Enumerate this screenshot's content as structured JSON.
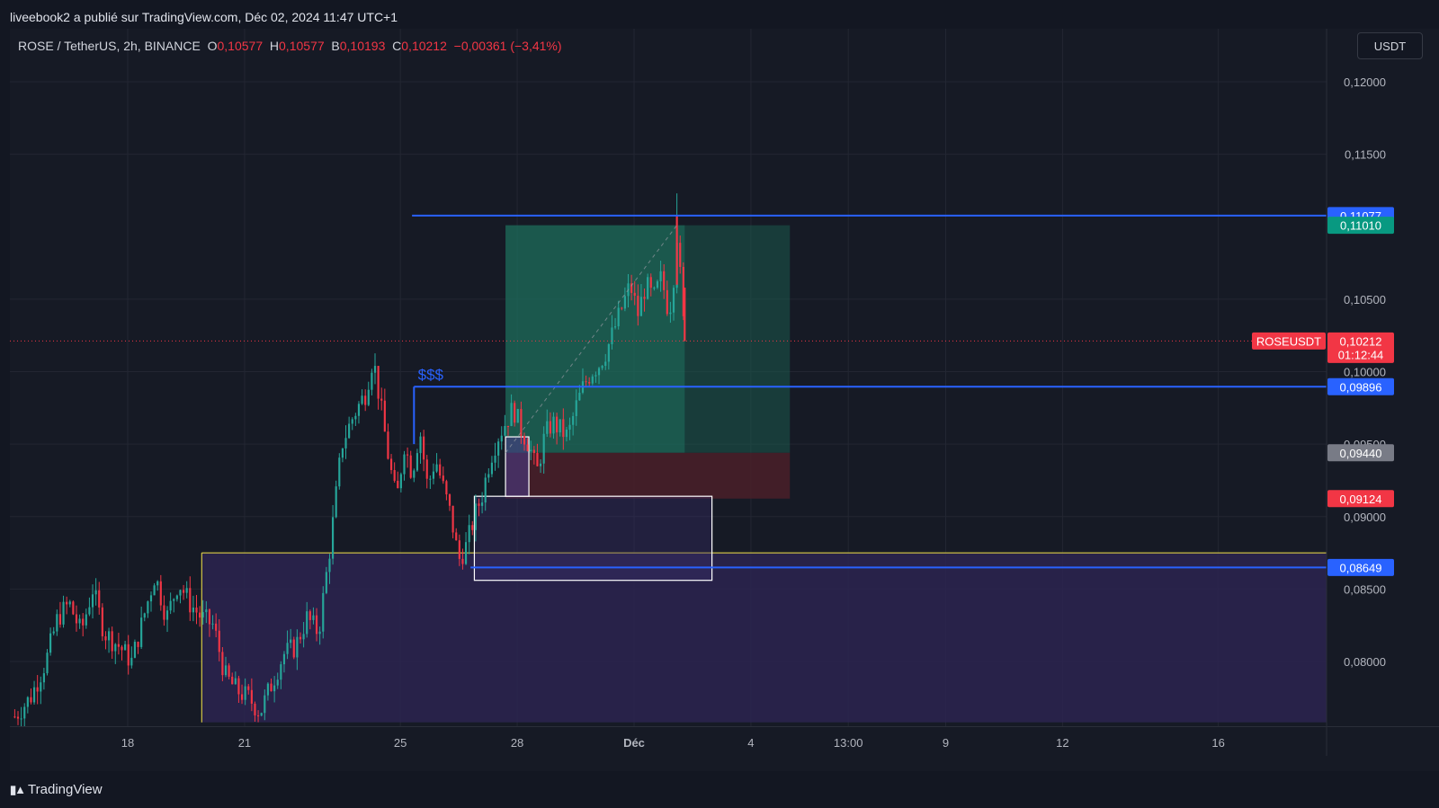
{
  "header": {
    "publisher_line": "liveebook2 a publié sur TradingView.com, Déc 02, 2024 11:47 UTC+1"
  },
  "legend": {
    "symbol": "ROSE / TetherUS, 2h, BINANCE",
    "o_label": "O",
    "o_value": "0,10577",
    "h_label": "H",
    "h_value": "0,10577",
    "l_label": "B",
    "l_value": "0,10193",
    "c_label": "C",
    "c_value": "0,10212",
    "change": "−0,00361 (−3,41%)"
  },
  "currency_button": "USDT",
  "footer": {
    "brand": "TradingView"
  },
  "colors": {
    "up": "#26a69a",
    "down": "#f23645",
    "blue_line": "#2962ff",
    "long_zone": "#1c5a4d",
    "short_zone": "#4a2029",
    "purple_zone": "#2b2450",
    "yellow": "#f5e447"
  },
  "chart_data": {
    "type": "candlestick",
    "symbol": "ROSEUSDT",
    "timeframe": "2h",
    "ylim": [
      0.0758,
      0.1232
    ],
    "y_ticks": [
      {
        "value": 0.12,
        "label": "0,12000"
      },
      {
        "value": 0.115,
        "label": "0,11500"
      },
      {
        "value": 0.105,
        "label": "0,10500"
      },
      {
        "value": 0.1,
        "label": "0,10000"
      },
      {
        "value": 0.095,
        "label": "0,09500"
      },
      {
        "value": 0.09,
        "label": "0,09000"
      },
      {
        "value": 0.085,
        "label": "0,08500"
      },
      {
        "value": 0.08,
        "label": "0,08000"
      }
    ],
    "x_ticks": [
      {
        "day": 18,
        "label": "18"
      },
      {
        "day": 21,
        "label": "21"
      },
      {
        "day": 25,
        "label": "25"
      },
      {
        "day": 28,
        "label": "28"
      },
      {
        "day": 31,
        "label": "Déc",
        "bold": true
      },
      {
        "day": 34,
        "label": "4"
      },
      {
        "day": 36.5,
        "label": "13:00"
      },
      {
        "day": 39,
        "label": "9"
      },
      {
        "day": 42,
        "label": "12"
      },
      {
        "day": 46,
        "label": "16"
      }
    ],
    "x_scale": {
      "day_ref": 18,
      "days_visible_from": 15.1,
      "days_visible_to": 48.8
    },
    "path_points": [
      [
        15.1,
        0.0762
      ],
      [
        15.5,
        0.0775
      ],
      [
        15.9,
        0.08
      ],
      [
        16.2,
        0.083
      ],
      [
        16.5,
        0.084
      ],
      [
        16.8,
        0.082
      ],
      [
        17.1,
        0.085
      ],
      [
        17.4,
        0.082
      ],
      [
        17.8,
        0.081
      ],
      [
        18.1,
        0.08
      ],
      [
        18.4,
        0.083
      ],
      [
        18.7,
        0.086
      ],
      [
        19.0,
        0.083
      ],
      [
        19.3,
        0.0855
      ],
      [
        19.6,
        0.084
      ],
      [
        19.9,
        0.083
      ],
      [
        20.2,
        0.0825
      ],
      [
        20.5,
        0.079
      ],
      [
        20.8,
        0.078
      ],
      [
        21.1,
        0.0775
      ],
      [
        21.4,
        0.0765
      ],
      [
        21.7,
        0.0785
      ],
      [
        22.0,
        0.0805
      ],
      [
        22.3,
        0.081
      ],
      [
        22.6,
        0.083
      ],
      [
        22.9,
        0.082
      ],
      [
        23.2,
        0.088
      ],
      [
        23.5,
        0.095
      ],
      [
        23.8,
        0.097
      ],
      [
        24.1,
        0.0985
      ],
      [
        24.3,
        0.101
      ],
      [
        24.5,
        0.0975
      ],
      [
        24.7,
        0.094
      ],
      [
        24.9,
        0.091
      ],
      [
        25.1,
        0.095
      ],
      [
        25.3,
        0.093
      ],
      [
        25.5,
        0.096
      ],
      [
        25.7,
        0.092
      ],
      [
        25.9,
        0.094
      ],
      [
        26.1,
        0.092
      ],
      [
        26.3,
        0.09
      ],
      [
        26.5,
        0.087
      ],
      [
        26.7,
        0.088
      ],
      [
        26.9,
        0.09
      ],
      [
        27.1,
        0.0915
      ],
      [
        27.3,
        0.094
      ],
      [
        27.5,
        0.0955
      ],
      [
        27.7,
        0.0965
      ],
      [
        27.9,
        0.0975
      ],
      [
        28.1,
        0.096
      ],
      [
        28.3,
        0.095
      ],
      [
        28.5,
        0.093
      ],
      [
        28.7,
        0.0955
      ],
      [
        28.9,
        0.0965
      ],
      [
        29.1,
        0.096
      ],
      [
        29.3,
        0.0955
      ],
      [
        29.5,
        0.0975
      ],
      [
        29.7,
        0.099
      ],
      [
        29.9,
        0.1
      ],
      [
        30.1,
        0.1005
      ],
      [
        30.3,
        0.1015
      ],
      [
        30.5,
        0.103
      ],
      [
        30.7,
        0.1045
      ],
      [
        30.9,
        0.106
      ],
      [
        31.1,
        0.104
      ],
      [
        31.3,
        0.106
      ],
      [
        31.5,
        0.105
      ],
      [
        31.7,
        0.1065
      ],
      [
        31.9,
        0.104
      ],
      [
        32.0,
        0.106
      ],
      [
        32.1,
        0.1095
      ],
      [
        32.2,
        0.106
      ],
      [
        32.3,
        0.1021
      ]
    ],
    "levels": [
      {
        "name": "high-line",
        "value": 0.11077,
        "label": "0,11077",
        "color": "#2962ff"
      },
      {
        "name": "liquidity-line",
        "value": 0.09896,
        "label": "0,09896",
        "color": "#2962ff",
        "annotation": "$$$"
      },
      {
        "name": "low-line",
        "value": 0.08649,
        "label": "0,08649",
        "color": "#2962ff"
      }
    ],
    "price_labels": [
      {
        "value": 0.1101,
        "label": "0,11010",
        "color": "#089981"
      },
      {
        "value": 0.0944,
        "label": "0,09440",
        "color": "#787b86"
      },
      {
        "value": 0.09124,
        "label": "0,09124",
        "color": "#f23645"
      }
    ],
    "current_price": {
      "value": 0.10212,
      "label": "0,10212",
      "countdown": "01:12:44",
      "tag": "ROSEUSDT",
      "color": "#f23645"
    },
    "position": {
      "type": "long",
      "entry": 0.0944,
      "target": 0.1101,
      "stop": 0.09124,
      "from_day": 27.7,
      "to_day": 35.0,
      "active_to_day": 32.3
    },
    "zones": [
      {
        "name": "demand-zone",
        "from_day": 19.9,
        "to_day": 48.8,
        "top": 0.0875,
        "bottom": 0.0758,
        "border": "#f5e447"
      },
      {
        "name": "order-block-box",
        "from_day": 26.9,
        "to_day": 33.0,
        "top": 0.0914,
        "bottom": 0.0856,
        "border": "#ffffff"
      },
      {
        "name": "entry-box",
        "from_day": 27.7,
        "to_day": 28.3,
        "top": 0.0955,
        "bottom": 0.0914,
        "border": "#ffffff"
      }
    ]
  }
}
